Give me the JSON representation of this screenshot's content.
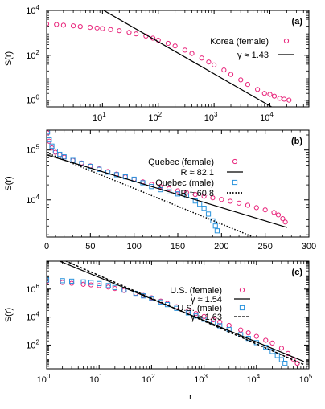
{
  "colors": {
    "female": "#e8237a",
    "male": "#2a93dc",
    "fit": "#000000",
    "frame": "#000000"
  },
  "chart_data": [
    {
      "type": "scatter",
      "panel_label": "(a)",
      "xlabel": "",
      "ylabel": "S(r)",
      "xscale": "log",
      "yscale": "log",
      "xlim": [
        1,
        50000
      ],
      "ylim": [
        0.5,
        10000
      ],
      "xticks": [
        {
          "v": 10,
          "base": "10",
          "exp": "1"
        },
        {
          "v": 100,
          "base": "10",
          "exp": "2"
        },
        {
          "v": 1000,
          "base": "10",
          "exp": "3"
        },
        {
          "v": 10000,
          "base": "10",
          "exp": "4"
        }
      ],
      "yticks": [
        {
          "v": 1,
          "base": "10",
          "exp": "0"
        },
        {
          "v": 100,
          "base": "10",
          "exp": "2"
        },
        {
          "v": 10000,
          "base": "10",
          "exp": "4"
        }
      ],
      "legend": {
        "position": "right",
        "entries": [
          {
            "label": "Korea (female)",
            "marker": "circle",
            "series": 0
          },
          {
            "label": "γ ≈ 1.43",
            "marker": "solid-line",
            "fit": 0
          }
        ]
      },
      "series": [
        {
          "name": "Korea (female)",
          "color_key": "female",
          "marker": "circle",
          "x": [
            1,
            1.5,
            2,
            3,
            4,
            6,
            8,
            10,
            14,
            20,
            30,
            40,
            60,
            80,
            100,
            150,
            200,
            300,
            400,
            600,
            800,
            1000,
            1500,
            2000,
            3000,
            4000,
            6000,
            8000,
            10000,
            12000,
            15000,
            18000,
            22000
          ],
          "y": [
            2500,
            2350,
            2200,
            2050,
            1900,
            1750,
            1650,
            1550,
            1400,
            1250,
            1050,
            900,
            720,
            580,
            470,
            340,
            260,
            170,
            120,
            75,
            50,
            37,
            22,
            14,
            8,
            5,
            3,
            2,
            1.8,
            1.5,
            1.2,
            1.1,
            1
          ]
        }
      ],
      "fits": [
        {
          "type": "power-law",
          "gamma": 1.43,
          "anchor": [
            100,
            400
          ],
          "x_range": [
            4,
            30000
          ],
          "style": "solid"
        }
      ]
    },
    {
      "type": "scatter",
      "panel_label": "(b)",
      "xlabel": "",
      "ylabel": "S(r)",
      "xscale": "linear",
      "yscale": "log",
      "xlim": [
        0,
        300
      ],
      "ylim": [
        1800,
        250000
      ],
      "xticks": [
        {
          "v": 0,
          "label": "0"
        },
        {
          "v": 50,
          "label": "50"
        },
        {
          "v": 100,
          "label": "100"
        },
        {
          "v": 150,
          "label": "150"
        },
        {
          "v": 200,
          "label": "200"
        },
        {
          "v": 250,
          "label": "250"
        },
        {
          "v": 300,
          "label": "300"
        }
      ],
      "yticks": [
        {
          "v": 10000,
          "base": "10",
          "exp": "4"
        },
        {
          "v": 100000,
          "base": "10",
          "exp": "5"
        }
      ],
      "legend": {
        "position": "right",
        "entries": [
          {
            "label": "Quebec (female)",
            "marker": "circle",
            "series": 0
          },
          {
            "label": "R ≈ 82.1",
            "marker": "solid-line",
            "fit": 0
          },
          {
            "label": "Quebec (male)",
            "marker": "square",
            "series": 1
          },
          {
            "label": "R ≈ 60.8",
            "marker": "dotted-line",
            "fit": 1
          }
        ]
      },
      "series": [
        {
          "name": "Quebec (female)",
          "color_key": "female",
          "marker": "circle",
          "x": [
            1,
            3,
            6,
            10,
            15,
            20,
            30,
            40,
            50,
            60,
            70,
            80,
            90,
            100,
            110,
            120,
            130,
            140,
            150,
            160,
            170,
            180,
            190,
            200,
            210,
            220,
            230,
            240,
            250,
            260,
            265,
            270,
            273
          ],
          "y": [
            220000,
            150000,
            110000,
            90000,
            80000,
            72000,
            62000,
            55000,
            48000,
            42000,
            37000,
            33000,
            29000,
            26000,
            23000,
            20500,
            18500,
            16800,
            15200,
            14000,
            12800,
            11800,
            11000,
            10200,
            9400,
            8600,
            7800,
            7000,
            6300,
            5600,
            5000,
            4200,
            3600
          ]
        },
        {
          "name": "Quebec (male)",
          "color_key": "male",
          "marker": "square",
          "x": [
            1,
            3,
            6,
            10,
            15,
            20,
            30,
            40,
            50,
            60,
            70,
            80,
            90,
            100,
            110,
            120,
            130,
            140,
            150,
            160,
            170,
            175,
            180,
            185,
            190,
            193,
            195
          ],
          "y": [
            230000,
            160000,
            120000,
            95000,
            82000,
            73000,
            62000,
            54000,
            47000,
            41000,
            36000,
            32000,
            29000,
            26000,
            22000,
            18500,
            16000,
            14500,
            13200,
            12000,
            9500,
            8200,
            6800,
            5200,
            3800,
            3000,
            2400
          ]
        }
      ],
      "fits": [
        {
          "type": "exponential",
          "R": 82.1,
          "anchor": [
            0,
            80000
          ],
          "x_range": [
            0,
            275
          ],
          "style": "solid"
        },
        {
          "type": "exponential",
          "R": 60.8,
          "anchor": [
            0,
            88000
          ],
          "x_range": [
            0,
            275
          ],
          "style": "dotted"
        }
      ]
    },
    {
      "type": "scatter",
      "panel_label": "(c)",
      "xlabel": "r",
      "ylabel": "S(r)",
      "xscale": "log",
      "yscale": "log",
      "xlim": [
        1,
        100000
      ],
      "ylim": [
        2,
        100000000
      ],
      "xticks": [
        {
          "v": 1,
          "base": "10",
          "exp": "0"
        },
        {
          "v": 10,
          "base": "10",
          "exp": "1"
        },
        {
          "v": 100,
          "base": "10",
          "exp": "2"
        },
        {
          "v": 1000,
          "base": "10",
          "exp": "3"
        },
        {
          "v": 10000,
          "base": "10",
          "exp": "4"
        },
        {
          "v": 100000,
          "base": "10",
          "exp": "5"
        }
      ],
      "yticks": [
        {
          "v": 100,
          "base": "10",
          "exp": "2"
        },
        {
          "v": 10000,
          "base": "10",
          "exp": "4"
        },
        {
          "v": 1000000,
          "base": "10",
          "exp": "6"
        }
      ],
      "legend": {
        "position": "right",
        "entries": [
          {
            "label": "U.S. (female)",
            "marker": "circle",
            "series": 0
          },
          {
            "label": "γ ≈ 1.54",
            "marker": "solid-line",
            "fit": 0
          },
          {
            "label": "U.S. (male)",
            "marker": "square",
            "series": 1
          },
          {
            "label": "γ ≈ 1.63",
            "marker": "dashed-line",
            "fit": 1
          }
        ]
      },
      "series": [
        {
          "name": "U.S. (female)",
          "color_key": "female",
          "marker": "circle",
          "x": [
            1,
            2,
            3,
            5,
            7,
            10,
            15,
            20,
            30,
            50,
            70,
            100,
            150,
            200,
            300,
            500,
            700,
            1000,
            1500,
            2000,
            3000,
            5000,
            7000,
            10000,
            15000,
            20000,
            30000,
            40000,
            50000,
            60000
          ],
          "y": [
            3500000,
            3000000,
            2600000,
            2200000,
            2000000,
            1800000,
            1400000,
            1100000,
            800000,
            500000,
            350000,
            240000,
            140000,
            95000,
            55000,
            28000,
            18000,
            11000,
            6500,
            4300,
            2500,
            1200,
            750,
            420,
            220,
            140,
            60,
            25,
            10,
            5
          ]
        },
        {
          "name": "U.S. (male)",
          "color_key": "male",
          "marker": "square",
          "x": [
            1,
            2,
            3,
            5,
            7,
            10,
            15,
            20,
            30,
            50,
            70,
            100,
            150,
            200,
            300,
            500,
            700,
            1000,
            1500,
            2000,
            3000,
            5000,
            7000,
            10000,
            15000,
            20000,
            25000,
            30000,
            35000
          ],
          "y": [
            4500000,
            4000000,
            3700000,
            3300000,
            3000000,
            2500000,
            1800000,
            1300000,
            850000,
            500000,
            330000,
            220000,
            120000,
            78000,
            42000,
            20000,
            12000,
            7000,
            3800,
            2400,
            1300,
            550,
            300,
            150,
            70,
            35,
            18,
            9,
            5
          ]
        }
      ],
      "fits": [
        {
          "type": "power-law",
          "gamma": 1.54,
          "anchor": [
            100,
            200000
          ],
          "x_range": [
            1,
            80000
          ],
          "style": "solid"
        },
        {
          "type": "power-law",
          "gamma": 1.63,
          "anchor": [
            100,
            220000
          ],
          "x_range": [
            1,
            80000
          ],
          "style": "dashed"
        }
      ]
    }
  ]
}
